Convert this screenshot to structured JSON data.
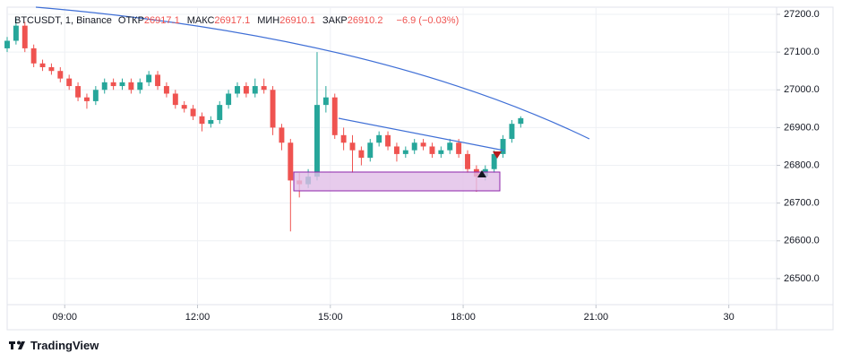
{
  "chart_data": {
    "type": "candlestick",
    "symbol": "BTCUSDT, 1, Binance",
    "legend_items": [
      {
        "label": "ОТКР",
        "value": "26917.1"
      },
      {
        "label": "МАКС",
        "value": "26917.1"
      },
      {
        "label": "МИН",
        "value": "26910.1"
      },
      {
        "label": "ЗАКР",
        "value": "26910.2"
      }
    ],
    "change": "−6.9 (−0.03%)",
    "brand": "TradingView",
    "up_color": "#26a69a",
    "down_color": "#ef5350",
    "grid": true,
    "xlim": [
      7.7,
      25.08
    ],
    "xticks": [
      {
        "value": 9,
        "label": "09:00"
      },
      {
        "value": 12,
        "label": "12:00"
      },
      {
        "value": 15,
        "label": "15:00"
      },
      {
        "value": 18,
        "label": "18:00"
      },
      {
        "value": 21,
        "label": "21:00"
      },
      {
        "value": 24,
        "label": "30"
      }
    ],
    "ylim": [
      26431,
      27219
    ],
    "yticks": [
      {
        "value": 26500,
        "label": "26500.0"
      },
      {
        "value": 26600,
        "label": "26600.0"
      },
      {
        "value": 26700,
        "label": "26700.0"
      },
      {
        "value": 26800,
        "label": "26800.0"
      },
      {
        "value": 26900,
        "label": "26900.0"
      },
      {
        "value": 27000,
        "label": "27000.0"
      },
      {
        "value": 27100,
        "label": "27100.0"
      },
      {
        "value": 27200,
        "label": "27200.0"
      }
    ],
    "x": [
      7.7,
      7.9,
      8.1,
      8.3,
      8.5,
      8.7,
      8.9,
      9.1,
      9.3,
      9.5,
      9.7,
      9.9,
      10.1,
      10.3,
      10.5,
      10.7,
      10.9,
      11.1,
      11.3,
      11.5,
      11.7,
      11.9,
      12.1,
      12.3,
      12.5,
      12.7,
      12.9,
      13.1,
      13.3,
      13.5,
      13.7,
      13.9,
      14.1,
      14.3,
      14.5,
      14.7,
      14.9,
      15.1,
      15.3,
      15.5,
      15.7,
      15.9,
      16.1,
      16.3,
      16.5,
      16.7,
      16.9,
      17.1,
      17.3,
      17.5,
      17.7,
      17.9,
      18.1,
      18.3,
      18.5,
      18.7,
      18.9,
      19.1,
      19.3
    ],
    "open": [
      27110,
      27130,
      27170,
      27110,
      27070,
      27060,
      27050,
      27030,
      27010,
      26980,
      26970,
      27000,
      27020,
      27010,
      27020,
      27000,
      27020,
      27040,
      27010,
      26990,
      26960,
      26950,
      26930,
      26910,
      26920,
      26960,
      26990,
      27010,
      26990,
      27010,
      27000,
      26900,
      26860,
      26760,
      26750,
      26770,
      26960,
      26980,
      26880,
      26860,
      26840,
      26820,
      26860,
      26880,
      26850,
      26830,
      26840,
      26860,
      26850,
      26830,
      26840,
      26860,
      26830,
      26790,
      26770,
      26790,
      26830,
      26870,
      26910
    ],
    "high": [
      27140,
      27190,
      27180,
      27120,
      27080,
      27070,
      27060,
      27040,
      27020,
      26990,
      27010,
      27030,
      27030,
      27030,
      27030,
      27030,
      27050,
      27050,
      27020,
      27000,
      26970,
      26960,
      26940,
      26930,
      26970,
      27000,
      27020,
      27020,
      27030,
      27030,
      27010,
      26910,
      26870,
      26780,
      26790,
      27100,
      27010,
      26990,
      26900,
      26880,
      26850,
      26870,
      26890,
      26890,
      26860,
      26850,
      26870,
      26870,
      26860,
      26850,
      26870,
      26870,
      26840,
      26800,
      26800,
      26840,
      26880,
      26920,
      26930
    ],
    "low": [
      27100,
      27120,
      27100,
      27060,
      27050,
      27040,
      27020,
      27000,
      26970,
      26950,
      26960,
      26990,
      27000,
      27000,
      26990,
      26990,
      27010,
      27000,
      26980,
      26950,
      26940,
      26920,
      26890,
      26900,
      26910,
      26950,
      26980,
      26980,
      26980,
      26990,
      26880,
      26840,
      26625,
      26715,
      26740,
      26760,
      26940,
      26870,
      26840,
      26780,
      26800,
      26810,
      26850,
      26840,
      26810,
      26820,
      26830,
      26840,
      26820,
      26820,
      26830,
      26820,
      26780,
      26730,
      26760,
      26780,
      26820,
      26860,
      26900
    ],
    "close": [
      27130,
      27170,
      27110,
      27070,
      27060,
      27050,
      27030,
      27010,
      26980,
      26970,
      27000,
      27020,
      27010,
      27020,
      27000,
      27020,
      27040,
      27010,
      26990,
      26960,
      26950,
      26930,
      26910,
      26920,
      26960,
      26990,
      27010,
      26990,
      27010,
      27000,
      26900,
      26860,
      26760,
      26750,
      26770,
      26960,
      26980,
      26880,
      26860,
      26840,
      26820,
      26860,
      26880,
      26850,
      26830,
      26840,
      26860,
      26850,
      26830,
      26840,
      26860,
      26830,
      26790,
      26770,
      26790,
      26830,
      26870,
      26910,
      26925
    ]
  }
}
